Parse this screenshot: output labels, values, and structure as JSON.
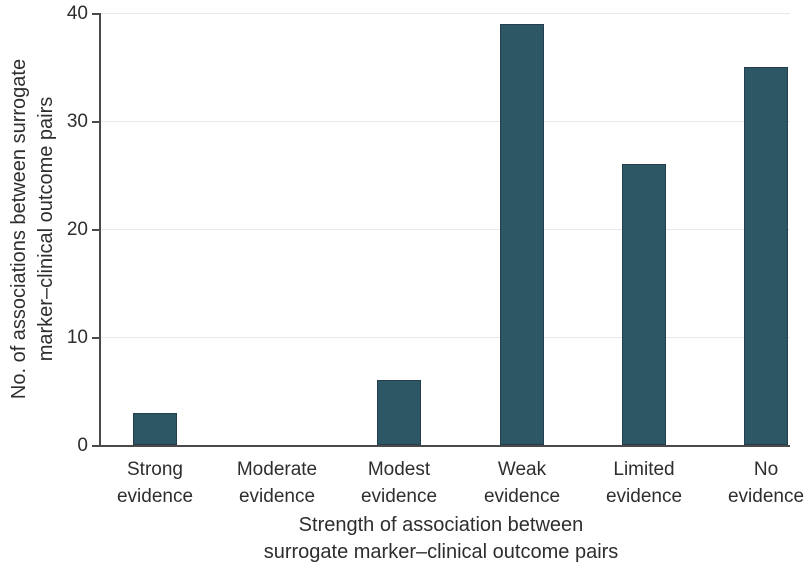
{
  "chart_data": {
    "type": "bar",
    "categories": [
      "Strong evidence",
      "Moderate evidence",
      "Modest evidence",
      "Weak evidence",
      "Limited evidence",
      "No evidence"
    ],
    "values": [
      3,
      0,
      6,
      39,
      26,
      35
    ],
    "xlabel": "Strength of association between\nsurrogate marker–clinical outcome pairs",
    "ylabel": "No. of associations between surrogate\nmarker–clinical outcome pairs",
    "ylim": [
      0,
      40
    ],
    "yticks": [
      0,
      10,
      20,
      30,
      40
    ],
    "grid": true,
    "legend": "none",
    "colors": {
      "background": "#ffffff",
      "bar_fill": "#2e5765",
      "bar_border": "#243f4b",
      "axis": "#4a4a4a",
      "gridline": "#e9e9e9",
      "text": "#2e2e2e"
    }
  }
}
